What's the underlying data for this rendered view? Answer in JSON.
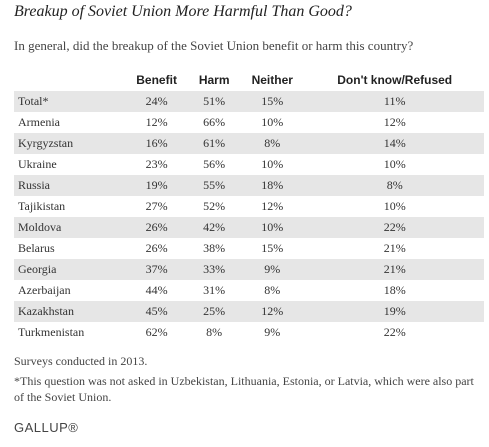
{
  "header": {
    "title": "Breakup of Soviet Union More Harmful Than Good?",
    "subtitle": "In general, did the breakup of the Soviet Union benefit or harm this country?"
  },
  "table": {
    "columns": [
      "Benefit",
      "Harm",
      "Neither",
      "Don't know/Refused"
    ],
    "rows": [
      [
        "Total*",
        "24%",
        "51%",
        "15%",
        "11%"
      ],
      [
        "Armenia",
        "12%",
        "66%",
        "10%",
        "12%"
      ],
      [
        "Kyrgyzstan",
        "16%",
        "61%",
        "8%",
        "14%"
      ],
      [
        "Ukraine",
        "23%",
        "56%",
        "10%",
        "10%"
      ],
      [
        "Russia",
        "19%",
        "55%",
        "18%",
        "8%"
      ],
      [
        "Tajikistan",
        "27%",
        "52%",
        "12%",
        "10%"
      ],
      [
        "Moldova",
        "26%",
        "42%",
        "10%",
        "22%"
      ],
      [
        "Belarus",
        "26%",
        "38%",
        "15%",
        "21%"
      ],
      [
        "Georgia",
        "37%",
        "33%",
        "9%",
        "21%"
      ],
      [
        "Azerbaijan",
        "44%",
        "31%",
        "8%",
        "18%"
      ],
      [
        "Kazakhstan",
        "45%",
        "25%",
        "12%",
        "19%"
      ],
      [
        "Turkmenistan",
        "62%",
        "8%",
        "9%",
        "22%"
      ]
    ]
  },
  "footnotes": [
    "Surveys conducted in 2013.",
    "*This question was not asked in Uzbekistan, Lithuania, Estonia, or Latvia, which were also part of the Soviet Union."
  ],
  "brand": "GALLUP®"
}
